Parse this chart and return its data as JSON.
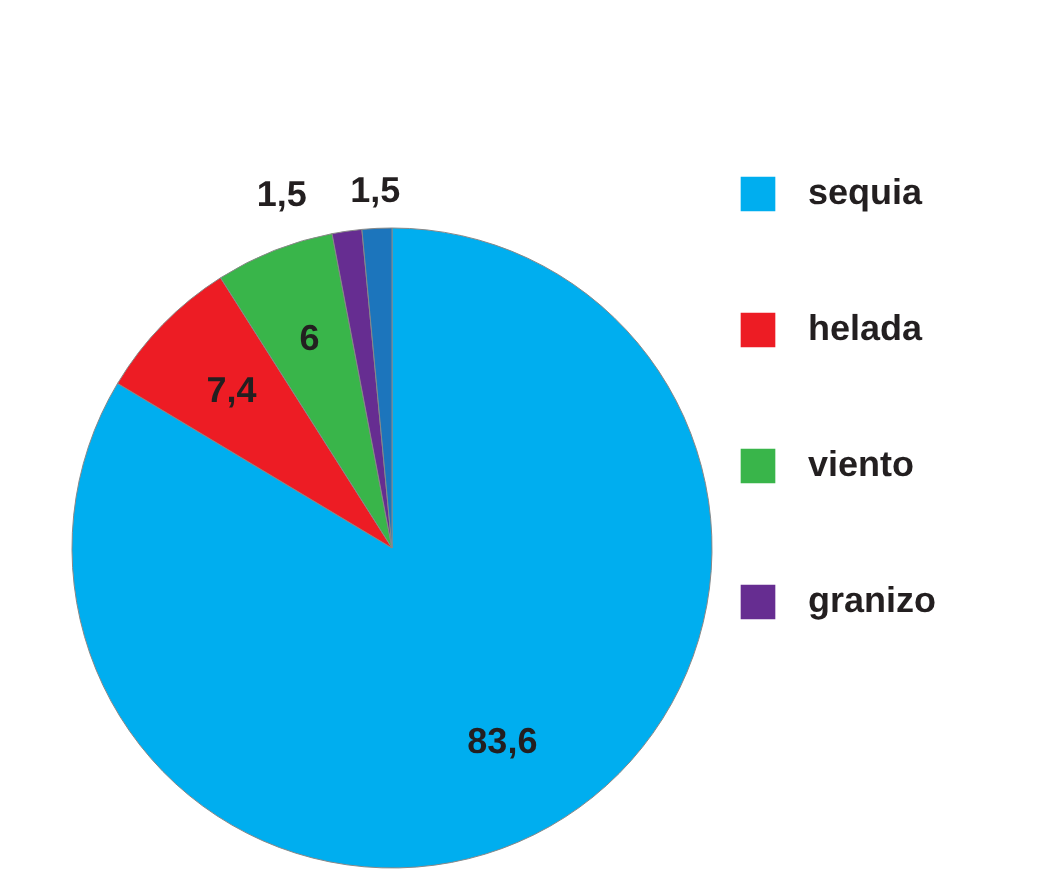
{
  "chart_data": {
    "type": "pie",
    "categories": [
      "sequia",
      "helada",
      "viento",
      "granizo",
      null
    ],
    "values": [
      83.6,
      7.4,
      6,
      1.5,
      1.5
    ],
    "value_labels": [
      "83,6",
      "7,4",
      "6",
      "1,5",
      "1,5"
    ],
    "colors": [
      "#00aeef",
      "#ed1c24",
      "#39b54a",
      "#662d91",
      "#1c75bc"
    ],
    "legend": "right"
  }
}
